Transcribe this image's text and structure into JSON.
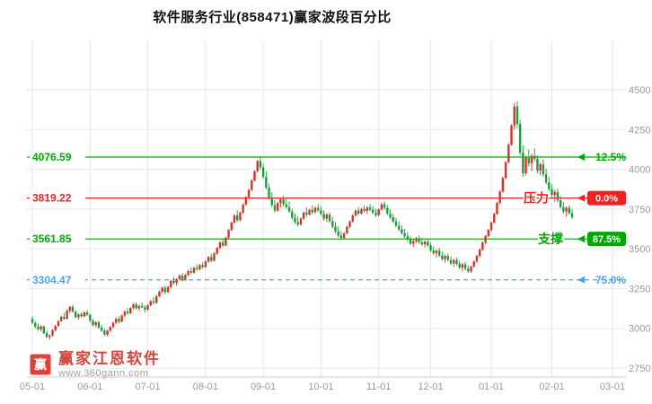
{
  "title": "软件服务行业(858471)赢家波段百分比",
  "watermark": {
    "brand": "赢家江恩软件",
    "url": "www.360gann.com",
    "logo_char": "赢"
  },
  "colors": {
    "up": "#d5342b",
    "down": "#1e9b3a",
    "grid": "#e7e7e7",
    "axis_line": "#cccccc",
    "axis_text": "#999999",
    "title_text": "#111111",
    "line_green": "#00a800",
    "line_red": "#ee2222",
    "line_blue": "#4ba3e8",
    "watermark_red": "#d5342b"
  },
  "chart_data": {
    "type": "candlestick",
    "title": "软件服务行业(858471)赢家波段百分比",
    "ylim": [
      2750,
      4500
    ],
    "grid": true,
    "y_ticks": [
      4500,
      4250,
      4000,
      3750,
      3500,
      3250,
      3000,
      2750
    ],
    "x_ticks": [
      {
        "label": "05-01",
        "index": 0
      },
      {
        "label": "06-01",
        "index": 20
      },
      {
        "label": "07-01",
        "index": 40
      },
      {
        "label": "08-01",
        "index": 60
      },
      {
        "label": "09-01",
        "index": 80
      },
      {
        "label": "10-01",
        "index": 100
      },
      {
        "label": "11-01",
        "index": 120
      },
      {
        "label": "12-01",
        "index": 138
      },
      {
        "label": "01-01",
        "index": 159
      },
      {
        "label": "02-01",
        "index": 180
      },
      {
        "label": "03-01",
        "index": 201
      }
    ],
    "hlines": [
      {
        "value": 4076.59,
        "label": "4076.59",
        "pct": "12.5%",
        "color": "#00a800",
        "style": "solid",
        "badge": "text"
      },
      {
        "value": 3819.22,
        "label": "3819.22",
        "pct": "0.0%",
        "color": "#ee2222",
        "style": "solid",
        "badge": "fill",
        "tag": "压力",
        "tag_x": 583,
        "tag_name": "pressure-label"
      },
      {
        "value": 3561.85,
        "label": "3561.85",
        "pct": "87.5%",
        "color": "#00a800",
        "style": "solid",
        "badge": "fill",
        "tag": "支撑",
        "tag_x": 599,
        "tag_name": "support-label"
      },
      {
        "value": 3304.47,
        "label": "3304.47",
        "pct": "75.0%",
        "color": "#4ba3e8",
        "style": "dashed",
        "badge": "text"
      }
    ],
    "candles": [
      [
        3060,
        3075,
        3025,
        3035
      ],
      [
        3035,
        3045,
        3000,
        3010
      ],
      [
        3010,
        3030,
        2985,
        2995
      ],
      [
        2995,
        3020,
        2980,
        3012
      ],
      [
        3012,
        3018,
        2962,
        2970
      ],
      [
        2970,
        2985,
        2938,
        2945
      ],
      [
        2945,
        2962,
        2928,
        2955
      ],
      [
        2955,
        2995,
        2948,
        2988
      ],
      [
        2988,
        3022,
        2980,
        3015
      ],
      [
        3015,
        3052,
        3008,
        3045
      ],
      [
        3045,
        3080,
        3040,
        3072
      ],
      [
        3072,
        3098,
        3052,
        3060
      ],
      [
        3060,
        3118,
        3055,
        3110
      ],
      [
        3110,
        3142,
        3095,
        3135
      ],
      [
        3135,
        3148,
        3098,
        3105
      ],
      [
        3105,
        3112,
        3062,
        3070
      ],
      [
        3070,
        3095,
        3055,
        3088
      ],
      [
        3088,
        3102,
        3068,
        3075
      ],
      [
        3075,
        3108,
        3070,
        3100
      ],
      [
        3100,
        3115,
        3078,
        3085
      ],
      [
        3085,
        3092,
        3040,
        3048
      ],
      [
        3048,
        3060,
        3012,
        3020
      ],
      [
        3020,
        3045,
        3008,
        3038
      ],
      [
        3038,
        3048,
        2998,
        3005
      ],
      [
        3005,
        3022,
        2975,
        2985
      ],
      [
        2985,
        2998,
        2952,
        2960
      ],
      [
        2960,
        2992,
        2948,
        2985
      ],
      [
        2985,
        3015,
        2978,
        3008
      ],
      [
        3008,
        3042,
        3000,
        3035
      ],
      [
        3035,
        3068,
        3028,
        3060
      ],
      [
        3060,
        3075,
        3030,
        3042
      ],
      [
        3042,
        3088,
        3038,
        3080
      ],
      [
        3080,
        3112,
        3072,
        3105
      ],
      [
        3105,
        3128,
        3085,
        3095
      ],
      [
        3095,
        3135,
        3090,
        3128
      ],
      [
        3128,
        3158,
        3120,
        3150
      ],
      [
        3150,
        3165,
        3118,
        3125
      ],
      [
        3125,
        3148,
        3108,
        3140
      ],
      [
        3140,
        3162,
        3128,
        3132
      ],
      [
        3132,
        3145,
        3098,
        3118
      ],
      [
        3118,
        3152,
        3110,
        3145
      ],
      [
        3145,
        3178,
        3138,
        3170
      ],
      [
        3170,
        3195,
        3150,
        3160
      ],
      [
        3160,
        3210,
        3155,
        3202
      ],
      [
        3202,
        3238,
        3195,
        3230
      ],
      [
        3230,
        3262,
        3222,
        3255
      ],
      [
        3255,
        3270,
        3215,
        3228
      ],
      [
        3228,
        3268,
        3220,
        3260
      ],
      [
        3260,
        3305,
        3252,
        3298
      ],
      [
        3298,
        3322,
        3275,
        3285
      ],
      [
        3285,
        3315,
        3268,
        3308
      ],
      [
        3308,
        3340,
        3300,
        3332
      ],
      [
        3332,
        3348,
        3295,
        3305
      ],
      [
        3305,
        3342,
        3298,
        3335
      ],
      [
        3335,
        3368,
        3328,
        3360
      ],
      [
        3360,
        3382,
        3340,
        3350
      ],
      [
        3350,
        3388,
        3345,
        3380
      ],
      [
        3380,
        3402,
        3362,
        3372
      ],
      [
        3372,
        3405,
        3365,
        3398
      ],
      [
        3398,
        3415,
        3375,
        3385
      ],
      [
        3385,
        3428,
        3380,
        3420
      ],
      [
        3420,
        3455,
        3412,
        3448
      ],
      [
        3448,
        3470,
        3415,
        3425
      ],
      [
        3425,
        3478,
        3420,
        3470
      ],
      [
        3470,
        3512,
        3462,
        3505
      ],
      [
        3505,
        3548,
        3498,
        3540
      ],
      [
        3540,
        3565,
        3510,
        3520
      ],
      [
        3520,
        3578,
        3515,
        3570
      ],
      [
        3570,
        3625,
        3562,
        3618
      ],
      [
        3618,
        3672,
        3610,
        3665
      ],
      [
        3665,
        3718,
        3658,
        3710
      ],
      [
        3710,
        3742,
        3668,
        3680
      ],
      [
        3680,
        3735,
        3672,
        3728
      ],
      [
        3728,
        3785,
        3720,
        3778
      ],
      [
        3778,
        3832,
        3770,
        3825
      ],
      [
        3825,
        3878,
        3818,
        3870
      ],
      [
        3870,
        3938,
        3862,
        3930
      ],
      [
        3930,
        3995,
        3922,
        3988
      ],
      [
        3988,
        4060,
        3980,
        4052
      ],
      [
        4052,
        4082,
        3998,
        4012
      ],
      [
        4012,
        4035,
        3940,
        3952
      ],
      [
        3952,
        3988,
        3872,
        3885
      ],
      [
        3885,
        3910,
        3808,
        3820
      ],
      [
        3820,
        3855,
        3762,
        3775
      ],
      [
        3775,
        3808,
        3728,
        3740
      ],
      [
        3740,
        3795,
        3732,
        3788
      ],
      [
        3788,
        3822,
        3760,
        3812
      ],
      [
        3812,
        3835,
        3768,
        3780
      ],
      [
        3780,
        3815,
        3752,
        3762
      ],
      [
        3762,
        3798,
        3725,
        3735
      ],
      [
        3735,
        3752,
        3682,
        3695
      ],
      [
        3695,
        3722,
        3655,
        3668
      ],
      [
        3668,
        3705,
        3640,
        3652
      ],
      [
        3652,
        3698,
        3645,
        3690
      ],
      [
        3690,
        3735,
        3682,
        3728
      ],
      [
        3728,
        3760,
        3700,
        3715
      ],
      [
        3715,
        3752,
        3708,
        3745
      ],
      [
        3745,
        3772,
        3718,
        3730
      ],
      [
        3730,
        3765,
        3722,
        3758
      ],
      [
        3758,
        3780,
        3732,
        3742
      ],
      [
        3742,
        3768,
        3708,
        3720
      ],
      [
        3720,
        3742,
        3678,
        3690
      ],
      [
        3690,
        3725,
        3668,
        3715
      ],
      [
        3715,
        3730,
        3662,
        3675
      ],
      [
        3675,
        3700,
        3628,
        3640
      ],
      [
        3640,
        3668,
        3598,
        3610
      ],
      [
        3610,
        3640,
        3572,
        3585
      ],
      [
        3585,
        3612,
        3558,
        3568
      ],
      [
        3568,
        3605,
        3560,
        3598
      ],
      [
        3598,
        3645,
        3590,
        3638
      ],
      [
        3638,
        3680,
        3630,
        3672
      ],
      [
        3672,
        3718,
        3665,
        3710
      ],
      [
        3710,
        3748,
        3702,
        3740
      ],
      [
        3740,
        3762,
        3712,
        3722
      ],
      [
        3722,
        3758,
        3715,
        3750
      ],
      [
        3750,
        3772,
        3728,
        3738
      ],
      [
        3738,
        3768,
        3720,
        3760
      ],
      [
        3760,
        3782,
        3735,
        3745
      ],
      [
        3745,
        3770,
        3718,
        3728
      ],
      [
        3728,
        3752,
        3700,
        3712
      ],
      [
        3712,
        3755,
        3705,
        3748
      ],
      [
        3748,
        3788,
        3740,
        3780
      ],
      [
        3780,
        3798,
        3745,
        3758
      ],
      [
        3758,
        3775,
        3712,
        3722
      ],
      [
        3722,
        3748,
        3688,
        3698
      ],
      [
        3698,
        3722,
        3662,
        3672
      ],
      [
        3672,
        3695,
        3635,
        3645
      ],
      [
        3645,
        3672,
        3612,
        3622
      ],
      [
        3622,
        3648,
        3588,
        3598
      ],
      [
        3598,
        3625,
        3568,
        3578
      ],
      [
        3578,
        3605,
        3548,
        3558
      ],
      [
        3558,
        3582,
        3522,
        3532
      ],
      [
        3532,
        3562,
        3510,
        3548
      ],
      [
        3548,
        3575,
        3535,
        3565
      ],
      [
        3565,
        3582,
        3532,
        3542
      ],
      [
        3542,
        3568,
        3518,
        3528
      ],
      [
        3528,
        3555,
        3508,
        3545
      ],
      [
        3545,
        3562,
        3512,
        3522
      ],
      [
        3522,
        3540,
        3478,
        3490
      ],
      [
        3490,
        3515,
        3462,
        3472
      ],
      [
        3472,
        3498,
        3445,
        3488
      ],
      [
        3488,
        3505,
        3448,
        3458
      ],
      [
        3458,
        3482,
        3425,
        3435
      ],
      [
        3435,
        3465,
        3412,
        3455
      ],
      [
        3455,
        3472,
        3420,
        3430
      ],
      [
        3430,
        3452,
        3398,
        3408
      ],
      [
        3408,
        3438,
        3385,
        3428
      ],
      [
        3428,
        3445,
        3395,
        3405
      ],
      [
        3405,
        3425,
        3372,
        3382
      ],
      [
        3382,
        3412,
        3358,
        3402
      ],
      [
        3402,
        3418,
        3365,
        3375
      ],
      [
        3375,
        3398,
        3348,
        3358
      ],
      [
        3358,
        3395,
        3350,
        3388
      ],
      [
        3388,
        3428,
        3380,
        3420
      ],
      [
        3420,
        3462,
        3412,
        3455
      ],
      [
        3455,
        3502,
        3448,
        3495
      ],
      [
        3495,
        3548,
        3488,
        3540
      ],
      [
        3540,
        3588,
        3532,
        3580
      ],
      [
        3580,
        3625,
        3572,
        3618
      ],
      [
        3618,
        3672,
        3610,
        3665
      ],
      [
        3665,
        3728,
        3658,
        3720
      ],
      [
        3720,
        3795,
        3712,
        3788
      ],
      [
        3788,
        3868,
        3780,
        3860
      ],
      [
        3860,
        3955,
        3852,
        3945
      ],
      [
        3945,
        4052,
        3938,
        4045
      ],
      [
        4045,
        4165,
        4038,
        4155
      ],
      [
        4155,
        4285,
        4148,
        4275
      ],
      [
        4275,
        4418,
        4252,
        4395
      ],
      [
        4395,
        4428,
        4258,
        4285
      ],
      [
        4285,
        4312,
        4088,
        4105
      ],
      [
        4105,
        4152,
        3952,
        3975
      ],
      [
        3975,
        4088,
        3962,
        4072
      ],
      [
        4072,
        4125,
        4018,
        4038
      ],
      [
        4038,
        4098,
        3988,
        4085
      ],
      [
        4085,
        4132,
        4052,
        4065
      ],
      [
        4065,
        4088,
        3975,
        3992
      ],
      [
        3992,
        4045,
        3962,
        4032
      ],
      [
        4032,
        4062,
        3952,
        3968
      ],
      [
        3968,
        4005,
        3905,
        3918
      ],
      [
        3918,
        3952,
        3862,
        3875
      ],
      [
        3875,
        3905,
        3825,
        3838
      ],
      [
        3838,
        3872,
        3795,
        3858
      ],
      [
        3858,
        3878,
        3792,
        3805
      ],
      [
        3805,
        3832,
        3752,
        3762
      ],
      [
        3762,
        3795,
        3722,
        3735
      ],
      [
        3735,
        3768,
        3702,
        3758
      ],
      [
        3758,
        3775,
        3715,
        3725
      ],
      [
        3725,
        3748,
        3688,
        3698
      ]
    ]
  }
}
